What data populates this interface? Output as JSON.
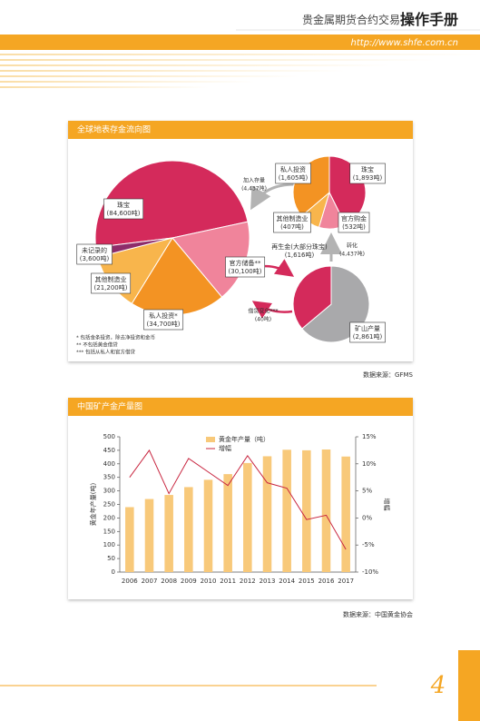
{
  "header": {
    "title": "贵金属期货合约交易",
    "title_bold": "操作手册",
    "url": "http://www.shfe.com.cn"
  },
  "figure1": {
    "title": "全球地表存金流向图",
    "flows": [
      {
        "label": "加入存量",
        "amount": "(4,437吨)"
      },
      {
        "label": "转化",
        "amount": "(4,437吨)"
      },
      {
        "label": "借贷变化***",
        "amount": "(40吨)"
      }
    ],
    "notes": [
      "* 包括金条投资，除去净投资和金币",
      "** 不包括黄金借贷",
      "*** 包括从私人和官方借贷"
    ],
    "source": "数据来源：GFMS"
  },
  "chart_data": [
    {
      "type": "pie",
      "categories": [
        "珠宝",
        "官方储备**",
        "私人投资*",
        "其他制造业",
        "未记录的"
      ],
      "values": [
        84600,
        30100,
        34700,
        21200,
        3600
      ],
      "value_labels": [
        "(84,600吨)",
        "(30,100吨)",
        "(34,700吨)",
        "(21,200吨)",
        "(3,600吨)"
      ],
      "colors": [
        "#d42a5b",
        "#f0849b",
        "#f39323",
        "#f8b54c",
        "#8e2c6a"
      ]
    },
    {
      "type": "pie",
      "categories": [
        "矿山产量",
        "再生金(大部分珠宝)"
      ],
      "values": [
        2861,
        1616
      ],
      "value_labels": [
        "(2,861吨)",
        "(1,616吨)"
      ],
      "colors": [
        "#a9a9ab",
        "#d42a5b"
      ]
    },
    {
      "type": "pie",
      "categories": [
        "珠宝",
        "官方购金",
        "其他制造业",
        "私人投资"
      ],
      "values": [
        1893,
        532,
        407,
        1605
      ],
      "value_labels": [
        "(1,893吨)",
        "(532吨)",
        "(407吨)",
        "(1,605吨)"
      ],
      "colors": [
        "#d42a5b",
        "#f0849b",
        "#f8b54c",
        "#f39323"
      ]
    },
    {
      "type": "combo",
      "title": "中国矿产金产量图",
      "ylabel": "黄金年产量(吨)",
      "y2label": "增幅",
      "categories": [
        "2006",
        "2007",
        "2008",
        "2009",
        "2010",
        "2011",
        "2012",
        "2013",
        "2014",
        "2015",
        "2016",
        "2017"
      ],
      "series": [
        {
          "name": "黄金年产量（吨）",
          "type": "bar",
          "color": "#f8c97a",
          "values": [
            240,
            270,
            285,
            314,
            341,
            362,
            403,
            428,
            452,
            450,
            453,
            427
          ]
        },
        {
          "name": "增幅",
          "type": "line",
          "axis": "y2",
          "color": "#c8253f",
          "values": [
            7.5,
            12.5,
            4.5,
            11,
            8.5,
            6,
            11.5,
            6.5,
            5.5,
            -0.3,
            0.5,
            -5.8
          ]
        }
      ],
      "ylim": [
        0,
        500
      ],
      "yticks": [
        0,
        50,
        100,
        150,
        200,
        250,
        300,
        350,
        400,
        450,
        500
      ],
      "y2lim": [
        -10,
        15
      ],
      "y2ticks": [
        {
          "value": -10,
          "label": "-10%"
        },
        {
          "value": -5,
          "label": "-5%"
        },
        {
          "value": 0,
          "label": "0%"
        },
        {
          "value": 5,
          "label": "5%"
        },
        {
          "value": 10,
          "label": "10%"
        },
        {
          "value": 15,
          "label": "15%"
        }
      ],
      "source": "数据来源：中国黄金协会"
    }
  ],
  "page_number": "4"
}
